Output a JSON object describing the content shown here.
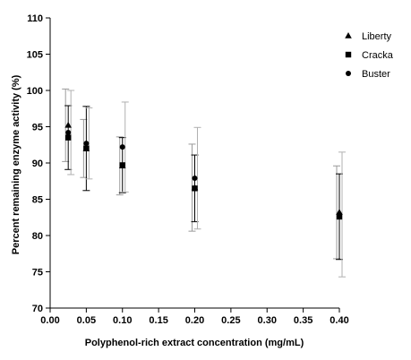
{
  "chart_data": {
    "type": "scatter",
    "xlabel": "Polyphenol-rich extract concentration (mg/mL)",
    "ylabel": "Percent remaining enzyme activity (%)",
    "xlim": [
      0.0,
      0.4
    ],
    "ylim": [
      70,
      110
    ],
    "xticks": [
      "0.00",
      "0.05",
      "0.10",
      "0.15",
      "0.20",
      "0.25",
      "0.30",
      "0.35",
      "0.40"
    ],
    "yticks": [
      "70",
      "75",
      "80",
      "85",
      "90",
      "95",
      "100",
      "105",
      "110"
    ],
    "legend_position": "top-right",
    "grid": false,
    "series": [
      {
        "name": "Liberty",
        "marker": "triangle",
        "color": "#000000",
        "x": [
          0.025,
          0.05,
          0.1,
          0.2,
          0.4
        ],
        "y": [
          95.2,
          92.0,
          89.6,
          86.6,
          83.2
        ],
        "err": [
          5.0,
          4.0,
          4.0,
          6.0,
          6.4
        ]
      },
      {
        "name": "Cracka",
        "marker": "square",
        "color": "#000000",
        "x": [
          0.025,
          0.05,
          0.1,
          0.2,
          0.4
        ],
        "y": [
          93.5,
          92.0,
          89.7,
          86.5,
          82.6
        ],
        "err": [
          4.4,
          5.8,
          3.8,
          4.6,
          5.9
        ]
      },
      {
        "name": "Buster",
        "marker": "circle",
        "color": "#000000",
        "x": [
          0.025,
          0.05,
          0.1,
          0.2,
          0.4
        ],
        "y": [
          94.2,
          92.7,
          92.2,
          87.9,
          82.9
        ],
        "err": [
          5.8,
          4.9,
          6.2,
          7.0,
          8.6
        ]
      }
    ]
  }
}
